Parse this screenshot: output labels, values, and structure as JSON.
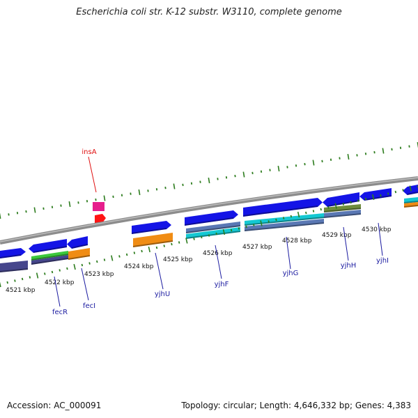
{
  "title": "Escherichia coli str. K-12 substr. W3110, complete genome",
  "footer": {
    "accession": "Accession: AC_000091",
    "topology": "Topology: circular; Length: 4,646,332 bp; Genes: 4,383"
  },
  "colors": {
    "backbone": "#8c8c8c",
    "tick": "#2e7d1f",
    "gene_blue": "#1414e6",
    "gene_orange": "#f08c14",
    "gene_teal": "#14c8d2",
    "gene_slate": "#5a78b4",
    "gene_indigo": "#46468c",
    "gene_green": "#3cc83c",
    "gene_olive": "#6e8c3c",
    "gene_pink": "#e61e8c",
    "gene_red": "#ff1414",
    "label_blue": "#1a1aa0",
    "label_red": "#e01010"
  },
  "kbp_labels": [
    "4521 kbp",
    "4522 kbp",
    "4523 kbp",
    "4524 kbp",
    "4525 kbp",
    "4526 kbp",
    "4527 kbp",
    "4528 kbp",
    "4529 kbp",
    "4530 kbp"
  ],
  "gene_labels": [
    "insA",
    "fecR",
    "fecI",
    "yjhU",
    "yjhF",
    "yjhG",
    "yjhH",
    "yjhI"
  ]
}
